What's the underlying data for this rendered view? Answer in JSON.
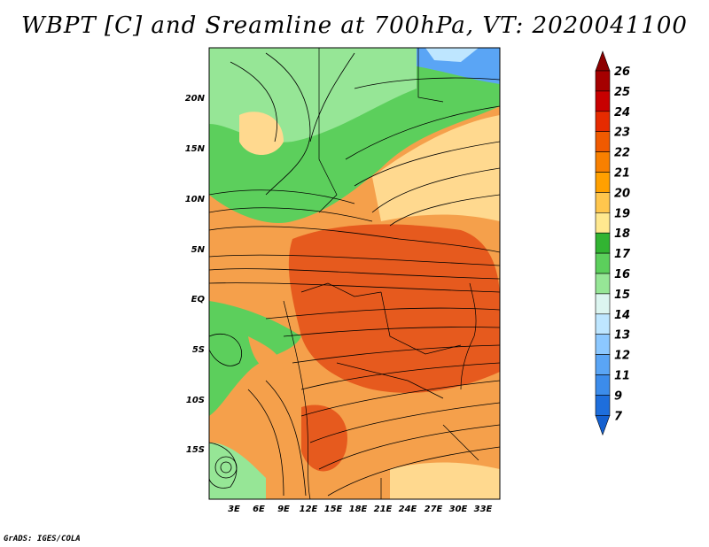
{
  "title": "WBPT [C] and Sreamline at 700hPa, VT: 2020041100",
  "credit": "GrADS: IGES/COLA",
  "lat_ticks": [
    "20N",
    "15N",
    "10N",
    "5N",
    "EQ",
    "5S",
    "10S",
    "15S"
  ],
  "lon_ticks": [
    "3E",
    "6E",
    "9E",
    "12E",
    "15E",
    "18E",
    "21E",
    "24E",
    "27E",
    "30E",
    "33E"
  ],
  "colorbar": {
    "labels": [
      "26",
      "25",
      "24",
      "23",
      "22",
      "21",
      "20",
      "19",
      "18",
      "17",
      "16",
      "15",
      "14",
      "13",
      "12",
      "11",
      "9",
      "7"
    ],
    "colors": [
      "#a50000",
      "#c80000",
      "#e62b00",
      "#f05a00",
      "#f88000",
      "#ffa000",
      "#ffc64d",
      "#ffe88f",
      "#32b432",
      "#5ccf5c",
      "#96e696",
      "#dcf5f0",
      "#bee6ff",
      "#8cc8ff",
      "#5aa5f5",
      "#3c8ceb",
      "#1e6edc"
    ],
    "top_arrow_color": "#8c0000",
    "bottom_arrow_color": "#1460d0"
  },
  "map_colors": {
    "hot": "#e65a1e",
    "warm": "#f5a04b",
    "mild": "#ffd98f",
    "green": "#5ccf5c",
    "light_green": "#96e696",
    "blue": "#5aa5f5"
  }
}
